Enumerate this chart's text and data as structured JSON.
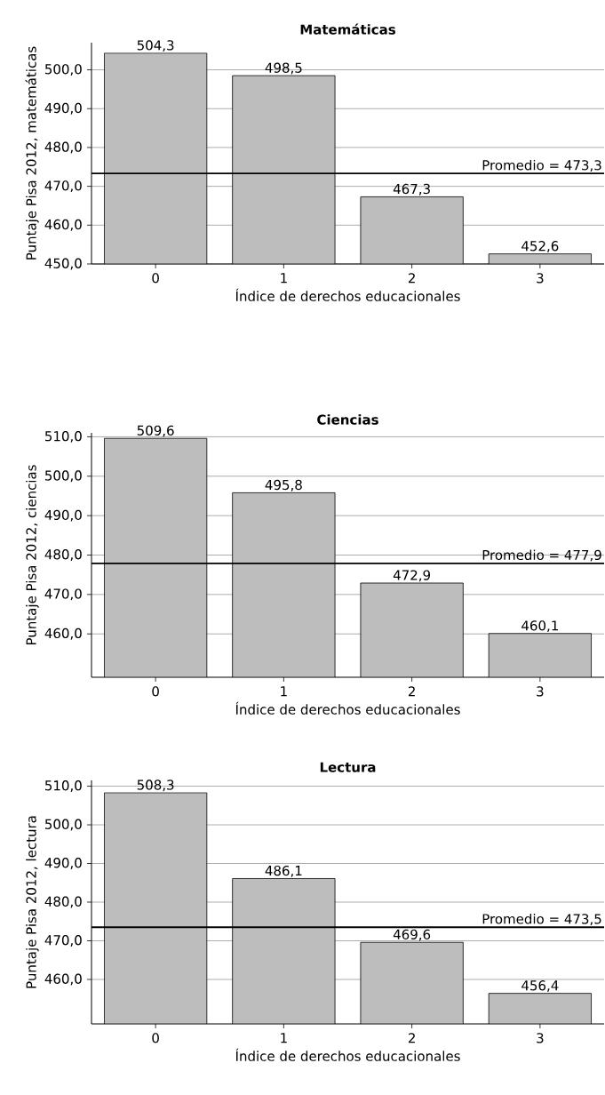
{
  "chart_data": [
    {
      "type": "bar",
      "title": "Matemáticas",
      "xlabel": "Índice de derechos educacionales",
      "ylabel": "Puntaje Pisa 2012, matemáticas",
      "categories": [
        "0",
        "1",
        "2",
        "3"
      ],
      "values": [
        504.3,
        498.5,
        467.3,
        452.6
      ],
      "value_labels": [
        "504,3",
        "498,5",
        "467,3",
        "452,6"
      ],
      "color": "#bdbdbd",
      "ylim": [
        450,
        507
      ],
      "yticks": [
        {
          "value": 450,
          "label": "450,0"
        },
        {
          "value": 460,
          "label": "460,0"
        },
        {
          "value": 470,
          "label": "470,0"
        },
        {
          "value": 480,
          "label": "480,0"
        },
        {
          "value": 490,
          "label": "490,0"
        },
        {
          "value": 500,
          "label": "500,0"
        }
      ],
      "grid": "y",
      "ref_lines": [
        {
          "axis": "y",
          "value": 473.3,
          "label": "Promedio = 473,3",
          "color": "#000000"
        }
      ]
    },
    {
      "type": "bar",
      "title": "Ciencias",
      "xlabel": "Índice de derechos educacionales",
      "ylabel": "Puntaje Pisa 2012, ciencias",
      "categories": [
        "0",
        "1",
        "2",
        "3"
      ],
      "values": [
        509.6,
        495.8,
        472.9,
        460.1
      ],
      "value_labels": [
        "509,6",
        "495,8",
        "472,9",
        "460,1"
      ],
      "color": "#bdbdbd",
      "ylim": [
        449,
        511
      ],
      "yticks": [
        {
          "value": 460,
          "label": "460,0"
        },
        {
          "value": 470,
          "label": "470,0"
        },
        {
          "value": 480,
          "label": "480,0"
        },
        {
          "value": 490,
          "label": "490,0"
        },
        {
          "value": 500,
          "label": "500,0"
        },
        {
          "value": 510,
          "label": "510,0"
        }
      ],
      "grid": "y",
      "ref_lines": [
        {
          "axis": "y",
          "value": 477.9,
          "label": "Promedio = 477,9",
          "color": "#000000"
        }
      ]
    },
    {
      "type": "bar",
      "title": "Lectura",
      "xlabel": "Índice de derechos educacionales",
      "ylabel": "Puntaje Pisa 2012, lectura",
      "categories": [
        "0",
        "1",
        "2",
        "3"
      ],
      "values": [
        508.3,
        486.1,
        469.6,
        456.4
      ],
      "value_labels": [
        "508,3",
        "486,1",
        "469,6",
        "456,4"
      ],
      "color": "#bdbdbd",
      "ylim": [
        448.5,
        511.5
      ],
      "yticks": [
        {
          "value": 460,
          "label": "460,0"
        },
        {
          "value": 470,
          "label": "470,0"
        },
        {
          "value": 480,
          "label": "480,0"
        },
        {
          "value": 490,
          "label": "490,0"
        },
        {
          "value": 500,
          "label": "500,0"
        },
        {
          "value": 510,
          "label": "510,0"
        }
      ],
      "grid": "y",
      "ref_lines": [
        {
          "axis": "y",
          "value": 473.5,
          "label": "Promedio = 473,5",
          "color": "#000000"
        }
      ]
    }
  ]
}
